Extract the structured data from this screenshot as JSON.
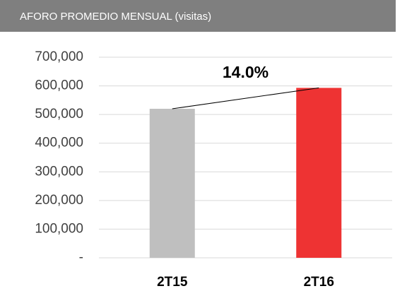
{
  "chart_data": {
    "type": "bar",
    "title": "AFORO PROMEDIO MENSUAL (visitas)",
    "categories": [
      "2T15",
      "2T16"
    ],
    "values": [
      520000,
      593000
    ],
    "colors": [
      "#bfbfbf",
      "#ee3333"
    ],
    "annotation": "14.0%",
    "ylim": [
      0,
      700000
    ],
    "yticks": [
      {
        "value": 0,
        "label": "-"
      },
      {
        "value": 100000,
        "label": "100,000"
      },
      {
        "value": 200000,
        "label": "200,000"
      },
      {
        "value": 300000,
        "label": "300,000"
      },
      {
        "value": 400000,
        "label": "400,000"
      },
      {
        "value": 500000,
        "label": "500,000"
      },
      {
        "value": 600000,
        "label": "600,000"
      },
      {
        "value": 700000,
        "label": "700,000"
      }
    ],
    "grid": true
  }
}
